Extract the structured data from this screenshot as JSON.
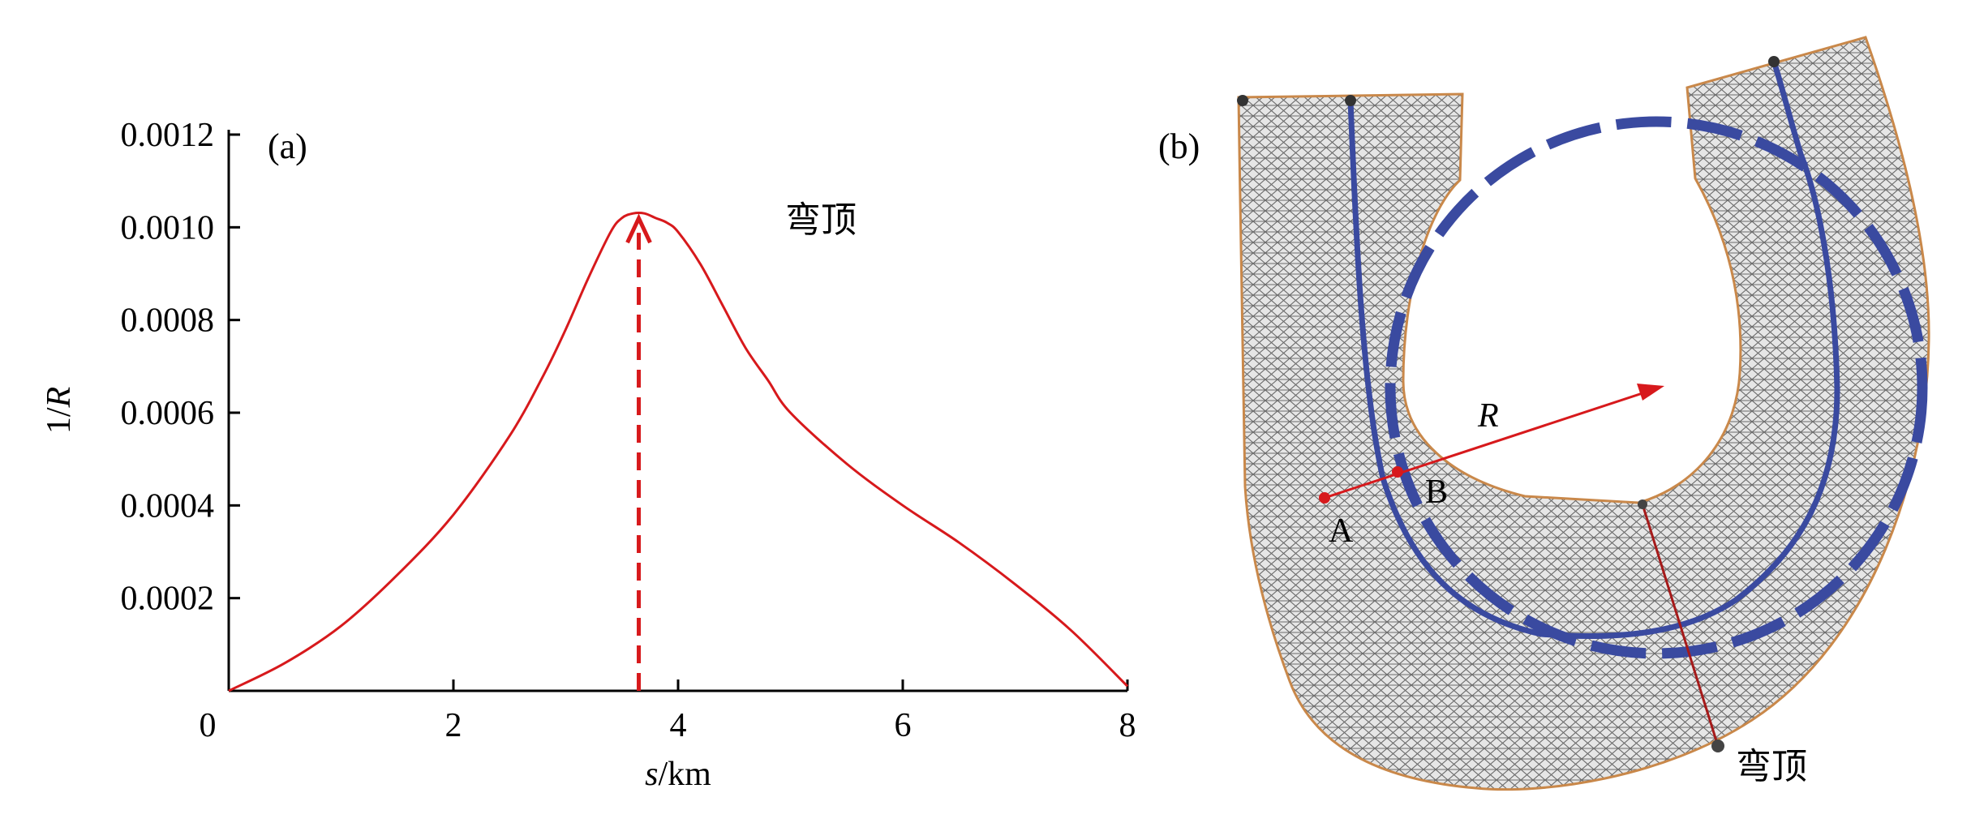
{
  "chart_data": [
    {
      "panel": "(a)",
      "type": "line",
      "xlabel_italic": "s",
      "xlabel_rest": "/km",
      "ylabel_plain": "1/",
      "ylabel_italic": "R",
      "xlim": [
        0,
        8
      ],
      "ylim": [
        0,
        0.0012
      ],
      "xticks": [
        0,
        2,
        4,
        6,
        8
      ],
      "xtick_labels": [
        "0",
        "2",
        "4",
        "6",
        "8"
      ],
      "yticks": [
        0.0002,
        0.0004,
        0.0006,
        0.0008,
        0.001,
        0.0012
      ],
      "ytick_labels": [
        "0.0002",
        "0.0004",
        "0.0006",
        "0.0008",
        "0.0010",
        "0.0012"
      ],
      "grid": false,
      "line_color": "#d7191c",
      "series": [
        {
          "x": [
            0,
            0.5,
            1.0,
            1.5,
            2.0,
            2.5,
            2.8,
            3.0,
            3.2,
            3.4,
            3.5,
            3.6,
            3.7,
            3.8,
            3.9,
            4.0,
            4.2,
            4.4,
            4.6,
            4.8,
            5.0,
            5.5,
            6.0,
            6.5,
            7.0,
            7.5,
            8.0
          ],
          "y": [
            0,
            6e-05,
            0.00014,
            0.00025,
            0.00038,
            0.00055,
            0.00068,
            0.00078,
            0.00089,
            0.00099,
            0.00102,
            0.00103,
            0.00103,
            0.00102,
            0.00101,
            0.00099,
            0.00092,
            0.00083,
            0.00074,
            0.00067,
            0.0006,
            0.00049,
            0.0004,
            0.00032,
            0.00023,
            0.00013,
            1e-05
          ]
        }
      ],
      "apex_marker": {
        "x": 3.65,
        "from_y": 0,
        "to_y": 0.00103,
        "style": "dashed-arrow",
        "color": "#d7191c"
      },
      "annotation": "弯顶"
    },
    {
      "panel": "(b)",
      "type": "diagram",
      "description_labels": {
        "point_a": "A",
        "point_b": "B",
        "radius_label": "R",
        "apex_label": "弯顶"
      },
      "colors": {
        "mesh": "#555555",
        "channel_line": "#3a4aa0",
        "radius_arrow": "#d7191c"
      }
    }
  ]
}
